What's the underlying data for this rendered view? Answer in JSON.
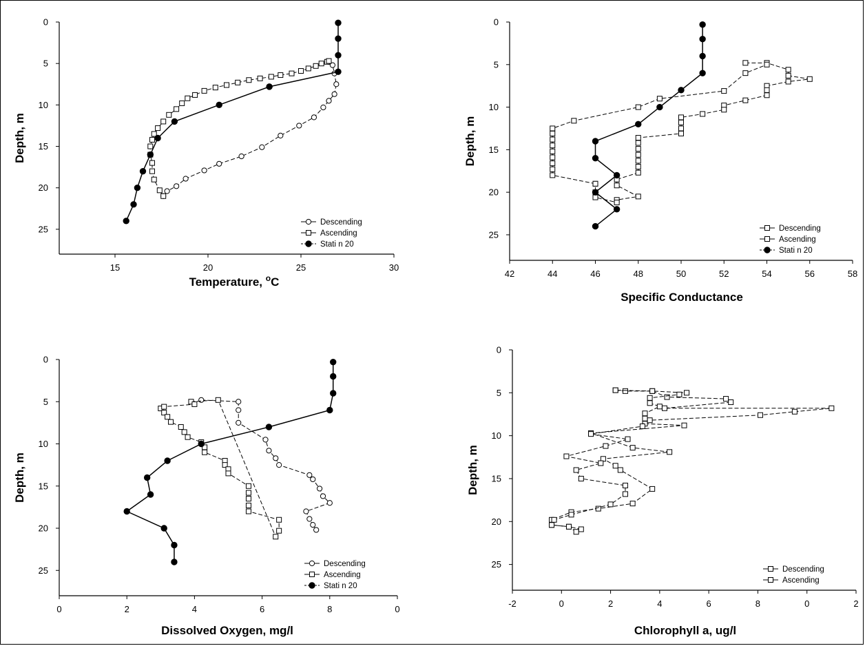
{
  "chart_data": [
    {
      "type": "line",
      "xlabel": "Temperature,",
      "xlabel_sup": "o",
      "xlabel_unit": "C",
      "ylabel": "Depth, m",
      "xlim": [
        12,
        30
      ],
      "ylim": [
        0,
        28
      ],
      "y_inverted": true,
      "xticks": [
        "15",
        "20",
        "25",
        "30"
      ],
      "yticks": [
        "0",
        "5",
        "10",
        "15",
        "20",
        "25"
      ],
      "legend": [
        "Descending",
        "Ascending",
        "Stati n 20"
      ],
      "legend_position": "bottom-right",
      "series": [
        {
          "name": "Descending",
          "marker": "circle-open",
          "points": [
            [
              26.5,
              4.8
            ],
            [
              26.7,
              5.2
            ],
            [
              26.8,
              6.2
            ],
            [
              26.9,
              7.5
            ],
            [
              26.8,
              8.7
            ],
            [
              26.5,
              9.5
            ],
            [
              26.2,
              10.3
            ],
            [
              25.7,
              11.5
            ],
            [
              24.9,
              12.5
            ],
            [
              23.9,
              13.7
            ],
            [
              22.9,
              15.1
            ],
            [
              21.8,
              16.2
            ],
            [
              20.6,
              17.1
            ],
            [
              19.8,
              17.9
            ],
            [
              18.8,
              18.9
            ],
            [
              18.3,
              19.8
            ],
            [
              17.8,
              20.4
            ],
            [
              17.6,
              21.0
            ]
          ]
        },
        {
          "name": "Ascending",
          "marker": "square-open",
          "points": [
            [
              17.6,
              21.0
            ],
            [
              17.4,
              20.3
            ],
            [
              17.1,
              19.0
            ],
            [
              17.0,
              18.0
            ],
            [
              17.0,
              17.0
            ],
            [
              16.9,
              16.0
            ],
            [
              16.9,
              15.0
            ],
            [
              17.0,
              14.2
            ],
            [
              17.1,
              13.5
            ],
            [
              17.3,
              12.8
            ],
            [
              17.6,
              12.0
            ],
            [
              17.9,
              11.2
            ],
            [
              18.3,
              10.5
            ],
            [
              18.6,
              9.8
            ],
            [
              18.9,
              9.2
            ],
            [
              19.3,
              8.8
            ],
            [
              19.8,
              8.3
            ],
            [
              20.4,
              7.9
            ],
            [
              21.0,
              7.6
            ],
            [
              21.6,
              7.3
            ],
            [
              22.2,
              7.0
            ],
            [
              22.8,
              6.8
            ],
            [
              23.4,
              6.6
            ],
            [
              23.9,
              6.4
            ],
            [
              24.5,
              6.2
            ],
            [
              25.0,
              5.9
            ],
            [
              25.4,
              5.6
            ],
            [
              25.8,
              5.3
            ],
            [
              26.1,
              5.0
            ],
            [
              26.4,
              4.8
            ],
            [
              26.5,
              4.7
            ]
          ]
        },
        {
          "name": "Stati n 20",
          "marker": "circle-filled",
          "points": [
            [
              27.0,
              0.1
            ],
            [
              27.0,
              2.0
            ],
            [
              27.0,
              4.0
            ],
            [
              27.0,
              6.0
            ],
            [
              23.3,
              7.8
            ],
            [
              20.6,
              10.0
            ],
            [
              18.2,
              12.0
            ],
            [
              17.3,
              14.0
            ],
            [
              16.9,
              16.0
            ],
            [
              16.5,
              18.0
            ],
            [
              16.2,
              20.0
            ],
            [
              16.0,
              22.0
            ],
            [
              15.6,
              24.0
            ]
          ]
        }
      ]
    },
    {
      "type": "line",
      "xlabel": "Specific Conductance",
      "xlabel_sup": "",
      "xlabel_unit": "",
      "ylabel": "Depth, m",
      "xlim": [
        42,
        58
      ],
      "ylim": [
        0,
        28
      ],
      "y_inverted": true,
      "xticks": [
        "42",
        "44",
        "46",
        "48",
        "50",
        "52",
        "54",
        "56",
        "58"
      ],
      "yticks": [
        "0",
        "5",
        "10",
        "15",
        "20",
        "25"
      ],
      "legend": [
        "Descending",
        "Ascending",
        "Stati n 20"
      ],
      "legend_position": "bottom-right",
      "series": [
        {
          "name": "Descending",
          "marker": "square-open",
          "points": [
            [
              53,
              4.8
            ],
            [
              54,
              4.8
            ],
            [
              55,
              5.6
            ],
            [
              55,
              6.3
            ],
            [
              56,
              6.7
            ],
            [
              55,
              7.0
            ],
            [
              54,
              7.5
            ],
            [
              54,
              8.0
            ],
            [
              54,
              8.6
            ],
            [
              53,
              9.2
            ],
            [
              52,
              9.8
            ],
            [
              52,
              10.3
            ],
            [
              51,
              10.8
            ],
            [
              50,
              11.2
            ],
            [
              50,
              11.8
            ],
            [
              50,
              12.5
            ],
            [
              50,
              13.1
            ],
            [
              48,
              13.6
            ],
            [
              48,
              14.2
            ],
            [
              48,
              14.9
            ],
            [
              48,
              15.6
            ],
            [
              48,
              16.3
            ],
            [
              48,
              17.0
            ],
            [
              48,
              17.7
            ],
            [
              47,
              18.5
            ],
            [
              47,
              19.2
            ],
            [
              48,
              20.5
            ],
            [
              47,
              20.9
            ],
            [
              47,
              21.2
            ],
            [
              46,
              20.6
            ],
            [
              46,
              20.0
            ],
            [
              46,
              19.0
            ]
          ]
        },
        {
          "name": "Ascending",
          "marker": "square-open",
          "points": [
            [
              46,
              19.0
            ],
            [
              44,
              18.0
            ],
            [
              44,
              17.3
            ],
            [
              44,
              16.6
            ],
            [
              44,
              15.9
            ],
            [
              44,
              15.2
            ],
            [
              44,
              14.5
            ],
            [
              44,
              13.8
            ],
            [
              44,
              13.1
            ],
            [
              44,
              12.5
            ],
            [
              45,
              11.6
            ],
            [
              48,
              10.0
            ],
            [
              49,
              9.0
            ],
            [
              52,
              8.1
            ],
            [
              53,
              6.0
            ],
            [
              54,
              5.0
            ]
          ]
        },
        {
          "name": "Stati n 20",
          "marker": "circle-filled",
          "points": [
            [
              51,
              0.3
            ],
            [
              51,
              2.0
            ],
            [
              51,
              4.0
            ],
            [
              51,
              6.0
            ],
            [
              50,
              8.0
            ],
            [
              49,
              10.0
            ],
            [
              48,
              12.0
            ],
            [
              46,
              14.0
            ],
            [
              46,
              16.0
            ],
            [
              47,
              18.0
            ],
            [
              46,
              20.0
            ],
            [
              47,
              22.0
            ],
            [
              46,
              24.0
            ]
          ]
        }
      ]
    },
    {
      "type": "line",
      "xlabel": "Dissolved Oxygen, mg/l",
      "xlabel_sup": "",
      "xlabel_unit": "",
      "ylabel": "Depth, m",
      "xlim": [
        0,
        10
      ],
      "ylim": [
        0,
        28
      ],
      "y_inverted": true,
      "xticks": [
        "0",
        "2",
        "4",
        "6",
        "8",
        "0"
      ],
      "yticks": [
        "0",
        "5",
        "10",
        "15",
        "20",
        "25"
      ],
      "legend": [
        "Descending",
        "Ascending",
        "Stati n 20"
      ],
      "legend_position": "bottom-right",
      "series": [
        {
          "name": "Descending",
          "marker": "circle-open",
          "points": [
            [
              4.2,
              4.8
            ],
            [
              5.3,
              5.0
            ],
            [
              5.3,
              6.0
            ],
            [
              5.3,
              7.5
            ],
            [
              6.1,
              9.5
            ],
            [
              6.2,
              10.8
            ],
            [
              6.4,
              11.7
            ],
            [
              6.5,
              12.5
            ],
            [
              7.4,
              13.7
            ],
            [
              7.5,
              14.2
            ],
            [
              7.7,
              15.3
            ],
            [
              7.8,
              16.2
            ],
            [
              8.0,
              17.0
            ],
            [
              7.3,
              18.0
            ],
            [
              7.4,
              18.9
            ],
            [
              7.5,
              19.6
            ],
            [
              7.6,
              20.2
            ]
          ]
        },
        {
          "name": "Ascending",
          "marker": "square-open",
          "points": [
            [
              3.0,
              5.8
            ],
            [
              3.1,
              6.3
            ],
            [
              3.2,
              6.8
            ],
            [
              3.3,
              7.4
            ],
            [
              3.6,
              8.0
            ],
            [
              3.7,
              8.6
            ],
            [
              3.8,
              9.2
            ],
            [
              4.2,
              9.8
            ],
            [
              4.3,
              10.4
            ],
            [
              4.3,
              11.0
            ],
            [
              4.9,
              12.0
            ],
            [
              4.9,
              12.5
            ],
            [
              5.0,
              13.0
            ],
            [
              5.0,
              13.5
            ],
            [
              5.6,
              15.0
            ],
            [
              5.6,
              15.8
            ],
            [
              5.6,
              16.5
            ],
            [
              5.6,
              17.3
            ],
            [
              5.6,
              18.0
            ],
            [
              6.5,
              19.0
            ],
            [
              6.5,
              20.3
            ],
            [
              6.4,
              21.0
            ],
            [
              4.7,
              4.8
            ],
            [
              3.9,
              5.0
            ],
            [
              4.0,
              5.3
            ],
            [
              3.1,
              5.6
            ]
          ]
        },
        {
          "name": "Stati n 20",
          "marker": "circle-filled",
          "points": [
            [
              8.1,
              0.3
            ],
            [
              8.1,
              2.0
            ],
            [
              8.1,
              4.0
            ],
            [
              8.0,
              6.0
            ],
            [
              6.2,
              8.0
            ],
            [
              4.2,
              10.0
            ],
            [
              3.2,
              12.0
            ],
            [
              2.6,
              14.0
            ],
            [
              2.7,
              16.0
            ],
            [
              2.0,
              18.0
            ],
            [
              3.1,
              20.0
            ],
            [
              3.4,
              22.0
            ],
            [
              3.4,
              24.0
            ]
          ]
        }
      ]
    },
    {
      "type": "line",
      "xlabel": "Chlorophyll a, ug/l",
      "xlabel_sup": "",
      "xlabel_unit": "",
      "ylabel": "Depth, m",
      "xlim": [
        -2,
        12
      ],
      "ylim": [
        0,
        28
      ],
      "y_inverted": true,
      "xticks": [
        "-2",
        "0",
        "2",
        "4",
        "6",
        "8",
        "0",
        "2"
      ],
      "yticks": [
        "0",
        "5",
        "10",
        "15",
        "20",
        "25"
      ],
      "legend": [
        "Descending",
        "Ascending"
      ],
      "legend_position": "bottom-right",
      "series": [
        {
          "name": "Descending",
          "marker": "square-open",
          "points": [
            [
              2.2,
              4.7
            ],
            [
              2.6,
              4.8
            ],
            [
              3.7,
              4.8
            ],
            [
              4.3,
              5.5
            ],
            [
              6.7,
              5.7
            ],
            [
              6.9,
              6.1
            ],
            [
              4.2,
              6.8
            ],
            [
              11.0,
              6.8
            ],
            [
              9.5,
              7.2
            ],
            [
              8.1,
              7.6
            ],
            [
              3.6,
              8.2
            ],
            [
              3.4,
              8.6
            ],
            [
              5.0,
              8.8
            ],
            [
              1.2,
              9.7
            ],
            [
              2.9,
              11.4
            ],
            [
              4.4,
              11.9
            ],
            [
              1.7,
              12.7
            ],
            [
              2.2,
              13.5
            ],
            [
              2.4,
              14.0
            ],
            [
              3.7,
              16.2
            ],
            [
              2.9,
              17.9
            ],
            [
              1.5,
              18.5
            ],
            [
              0.4,
              18.9
            ],
            [
              -0.4,
              19.8
            ],
            [
              -0.4,
              20.4
            ],
            [
              0.3,
              20.6
            ],
            [
              0.8,
              20.9
            ]
          ]
        },
        {
          "name": "Ascending",
          "marker": "square-open",
          "points": [
            [
              0.6,
              21.2
            ],
            [
              0.3,
              20.6
            ],
            [
              -0.4,
              20.4
            ],
            [
              -0.3,
              19.8
            ],
            [
              0.4,
              19.2
            ],
            [
              2.0,
              18.0
            ],
            [
              2.6,
              16.8
            ],
            [
              2.6,
              15.8
            ],
            [
              0.8,
              15.0
            ],
            [
              0.6,
              14.0
            ],
            [
              1.6,
              13.2
            ],
            [
              0.2,
              12.4
            ],
            [
              1.8,
              11.2
            ],
            [
              2.7,
              10.4
            ],
            [
              1.2,
              9.8
            ],
            [
              3.3,
              8.9
            ],
            [
              3.4,
              8.0
            ],
            [
              3.4,
              7.4
            ],
            [
              4.0,
              6.6
            ],
            [
              3.6,
              6.2
            ],
            [
              3.6,
              5.6
            ],
            [
              4.8,
              5.2
            ],
            [
              5.1,
              5.0
            ],
            [
              3.7,
              4.8
            ],
            [
              2.2,
              4.7
            ]
          ]
        }
      ]
    }
  ]
}
